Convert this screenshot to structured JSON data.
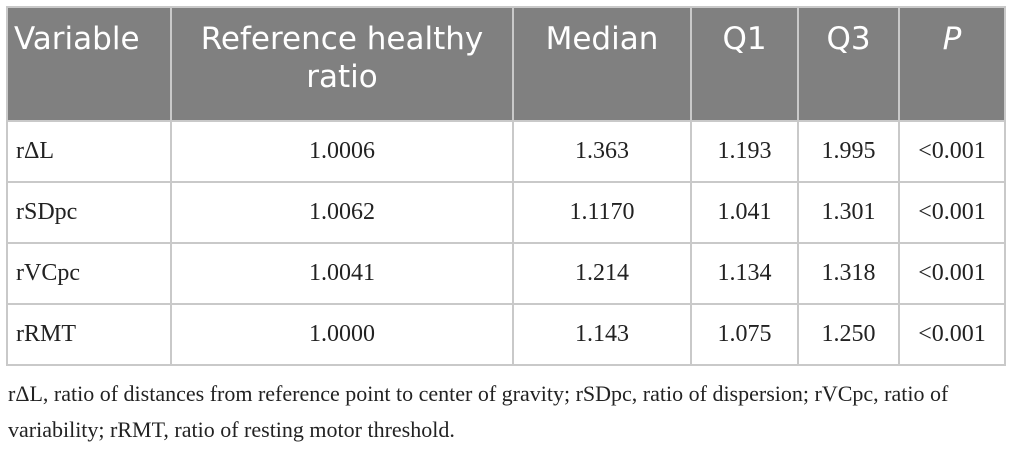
{
  "table": {
    "header": [
      "Variable",
      "Reference healthy ratio",
      "Median",
      "Q1",
      "Q3",
      "P"
    ],
    "rows": [
      [
        "rΔL",
        "1.0006",
        "1.363",
        "1.193",
        "1.995",
        "<0.001"
      ],
      [
        "rSDpc",
        "1.0062",
        "1.1170",
        "1.041",
        "1.301",
        "<0.001"
      ],
      [
        "rVCpc",
        "1.0041",
        "1.214",
        "1.134",
        "1.318",
        "<0.001"
      ],
      [
        "rRMT",
        "1.0000",
        "1.143",
        "1.075",
        "1.250",
        "<0.001"
      ]
    ]
  },
  "footnote": "rΔL, ratio of distances from reference point to center of gravity; rSDpc, ratio of dispersion; rVCpc, ratio of variability; rRMT, ratio of resting motor threshold."
}
